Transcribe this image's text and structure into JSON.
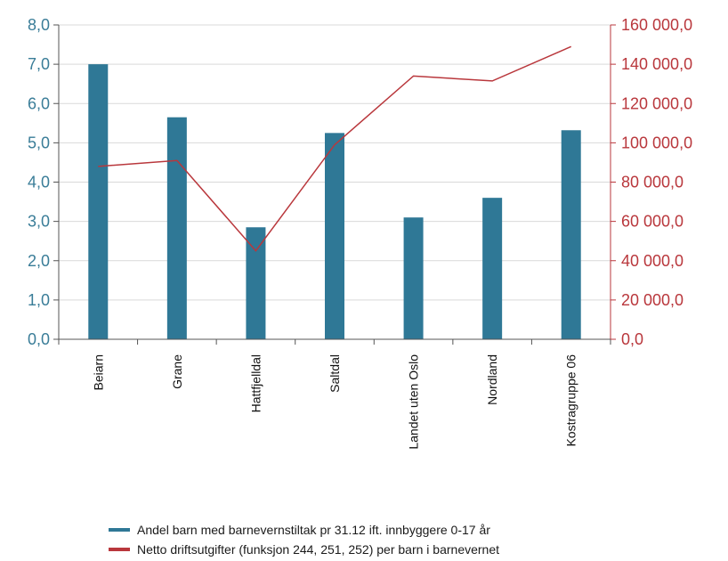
{
  "chart_data": {
    "type": "bar",
    "categories": [
      "Beiarn",
      "Grane",
      "Hattfjelldal",
      "Saltdal",
      "Landet uten Oslo",
      "Nordland",
      "Kostragruppe 06"
    ],
    "series": [
      {
        "name": "Andel barn med barnevernstiltak pr 31.12 ift. innbyggere 0-17 år",
        "type": "bar",
        "axis": "left",
        "values": [
          7.0,
          5.65,
          2.85,
          5.25,
          3.1,
          3.6,
          5.32
        ]
      },
      {
        "name": "Netto driftsutgifter (funksjon 244, 251, 252) per barn i barnevernet",
        "type": "line",
        "axis": "right",
        "values": [
          88000,
          91000,
          45000,
          99000,
          134000,
          131500,
          149000
        ]
      }
    ],
    "y_left": {
      "ylim": [
        0,
        8
      ],
      "ticks": [
        0,
        1,
        2,
        3,
        4,
        5,
        6,
        7,
        8
      ],
      "tick_labels": [
        "0,0",
        "1,0",
        "2,0",
        "3,0",
        "4,0",
        "5,0",
        "6,0",
        "7,0",
        "8,0"
      ]
    },
    "y_right": {
      "ylim": [
        0,
        160000
      ],
      "ticks": [
        0,
        20000,
        40000,
        60000,
        80000,
        100000,
        120000,
        140000,
        160000
      ],
      "tick_labels": [
        "0,0",
        "20 000,0",
        "40 000,0",
        "60 000,0",
        "80 000,0",
        "100 000,0",
        "120 000,0",
        "140 000,0",
        "160 000,0"
      ]
    },
    "grid": true,
    "legend": "bottom",
    "colors": {
      "bar": "#2f7896",
      "line": "#b9373c",
      "left_axis_text": "#3a7d98",
      "right_axis_text": "#b9373c",
      "grid": "#d9d9d9"
    }
  }
}
